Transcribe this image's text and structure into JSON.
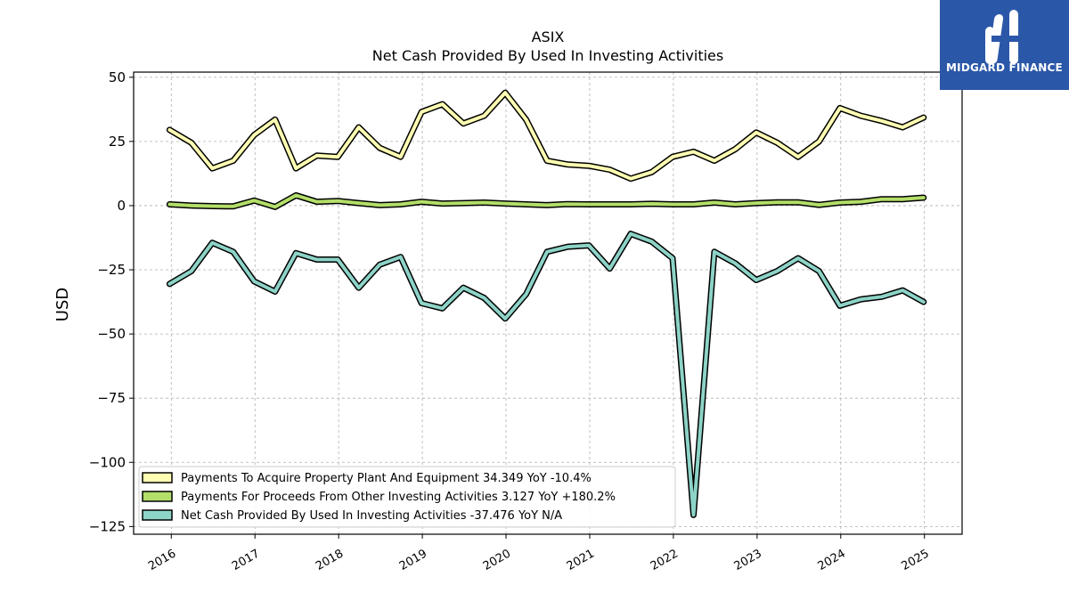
{
  "chart_data": {
    "type": "line",
    "title": "ASIX",
    "subtitle": "Net Cash Provided By Used In Investing Activities",
    "ylabel": "USD",
    "xlabel": "",
    "ylim": [
      -128,
      52
    ],
    "xlim": [
      2015.55,
      2025.45
    ],
    "yticks": [
      50,
      25,
      0,
      -25,
      -50,
      -75,
      -100,
      -125
    ],
    "ytick_labels": [
      "50",
      "25",
      "0",
      "−25",
      "−50",
      "−75",
      "−100",
      "−125"
    ],
    "xticks": [
      2016,
      2017,
      2018,
      2019,
      2020,
      2021,
      2022,
      2023,
      2024,
      2025
    ],
    "xtick_labels": [
      "2016",
      "2017",
      "2018",
      "2019",
      "2020",
      "2021",
      "2022",
      "2023",
      "2024",
      "2025"
    ],
    "grid": true,
    "legend_position": "bottom-left",
    "x": [
      2015.98,
      2016.24,
      2016.49,
      2016.74,
      2016.99,
      2017.24,
      2017.49,
      2017.74,
      2017.99,
      2018.24,
      2018.49,
      2018.74,
      2018.99,
      2019.24,
      2019.49,
      2019.74,
      2019.99,
      2020.24,
      2020.49,
      2020.74,
      2020.99,
      2021.24,
      2021.49,
      2021.74,
      2021.99,
      2022.24,
      2022.49,
      2022.74,
      2022.99,
      2023.24,
      2023.49,
      2023.74,
      2023.99,
      2024.24,
      2024.49,
      2024.74,
      2024.99
    ],
    "series": [
      {
        "name": "Payments To Acquire Property Plant And Equipment",
        "legend": "Payments To Acquire Property Plant And Equipment  34.349 YoY -10.4%",
        "color": "#ffffb3",
        "values": [
          29.5,
          24.5,
          14.5,
          17.5,
          27.5,
          33.5,
          14.5,
          19.5,
          19.0,
          30.5,
          22.5,
          19.0,
          36.5,
          39.5,
          32.0,
          35.0,
          44.0,
          33.5,
          17.5,
          16.0,
          15.5,
          14.0,
          10.5,
          13.0,
          19.0,
          21.0,
          17.5,
          22.0,
          28.5,
          24.5,
          19.0,
          25.0,
          38.0,
          35.0,
          33.0,
          30.5,
          34.3
        ]
      },
      {
        "name": "Payments For Proceeds From Other Investing Activities",
        "legend": "Payments For Proceeds From Other Investing Activities  3.127 YoY +180.2%",
        "color": "#b3de69",
        "values": [
          0.5,
          0.0,
          -0.2,
          -0.3,
          2.0,
          -0.5,
          4.0,
          1.5,
          1.8,
          1.0,
          0.2,
          0.5,
          1.5,
          0.8,
          1.0,
          1.2,
          0.8,
          0.5,
          0.2,
          0.6,
          0.5,
          0.5,
          0.5,
          0.7,
          0.5,
          0.5,
          1.2,
          0.5,
          1.0,
          1.3,
          1.3,
          0.3,
          1.2,
          1.5,
          2.5,
          2.5,
          3.1
        ]
      },
      {
        "name": "Net Cash Provided By Used In Investing Activities",
        "legend": "Net Cash Provided By Used In Investing Activities  -37.476 YoY N/A",
        "color": "#8dd3c7",
        "values": [
          -30.5,
          -25.5,
          -14.5,
          -18.0,
          -29.5,
          -33.5,
          -18.5,
          -21.0,
          -21.0,
          -32.0,
          -23.0,
          -20.0,
          -38.0,
          -40.0,
          -32.0,
          -36.0,
          -44.0,
          -34.5,
          -18.0,
          -16.0,
          -15.5,
          -24.5,
          -11.0,
          -14.0,
          -20.5,
          -120.5,
          -18.0,
          -22.5,
          -29.0,
          -25.5,
          -20.5,
          -25.5,
          -39.0,
          -36.5,
          -35.5,
          -33.0,
          -37.5
        ]
      }
    ]
  },
  "logo": {
    "text": "MIDGARD FINANCE",
    "color": "#2b57a8"
  }
}
